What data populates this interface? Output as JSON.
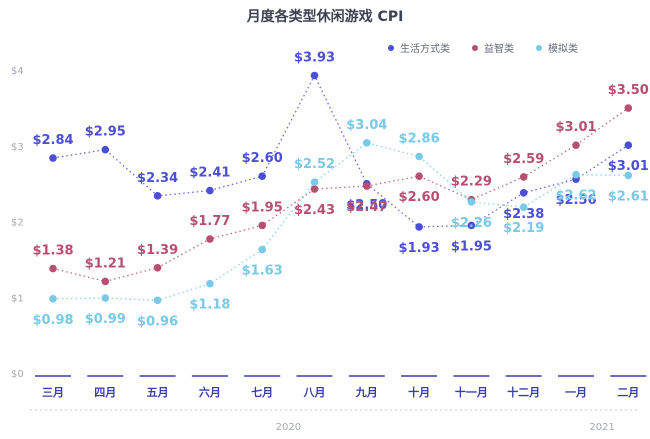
{
  "chart_data": {
    "type": "line",
    "title": "月度各类型休闲游戏 CPI",
    "categories": [
      "三月",
      "四月",
      "五月",
      "六月",
      "七月",
      "八月",
      "九月",
      "十月",
      "十一月",
      "十二月",
      "一月",
      "二月"
    ],
    "year_labels": [
      "2020",
      "2021"
    ],
    "ylim": [
      0,
      4
    ],
    "y_ticks": [
      {
        "value": 0,
        "label": "$0"
      },
      {
        "value": 1,
        "label": "$1"
      },
      {
        "value": 2,
        "label": "$2"
      },
      {
        "value": 3,
        "label": "$3"
      },
      {
        "value": 4,
        "label": "$4"
      }
    ],
    "grid": false,
    "legend_position": "top-right",
    "series": [
      {
        "name": "生活方式类",
        "color": "#4b4fd6",
        "values": [
          2.84,
          2.95,
          2.34,
          2.41,
          2.6,
          3.93,
          2.5,
          1.93,
          1.95,
          2.38,
          2.56,
          3.01
        ],
        "labels": [
          "$2.84",
          "$2.95",
          "$2.34",
          "$2.41",
          "$2.60",
          "$3.93",
          "$2.50",
          "$1.93",
          "$1.95",
          "$2.38",
          "$2.56",
          "$3.01"
        ]
      },
      {
        "name": "益智类",
        "color": "#b94f6e",
        "values": [
          1.38,
          1.21,
          1.39,
          1.77,
          1.95,
          2.43,
          2.47,
          2.6,
          2.29,
          2.59,
          3.01,
          3.5
        ],
        "labels": [
          "$1.38",
          "$1.21",
          "$1.39",
          "$1.77",
          "$1.95",
          "$2.43",
          "$2.47",
          "$2.60",
          "$2.29",
          "$2.59",
          "$3.01",
          "$3.50"
        ]
      },
      {
        "name": "模拟类",
        "color": "#79c9e8",
        "values": [
          0.98,
          0.99,
          0.96,
          1.18,
          1.63,
          2.52,
          3.04,
          2.86,
          2.26,
          2.19,
          2.62,
          2.61
        ],
        "labels": [
          "$0.98",
          "$0.99",
          "$0.96",
          "$1.18",
          "$1.63",
          "$2.52",
          "$3.04",
          "$2.86",
          "$2.26",
          "$2.19",
          "$2.62",
          "$2.61"
        ]
      }
    ]
  }
}
